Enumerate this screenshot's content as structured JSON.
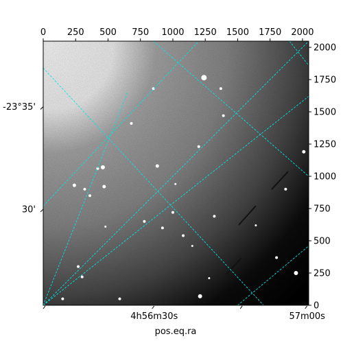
{
  "chart_data": {
    "type": "image",
    "xlabel": "pos.eq.ra",
    "ylabel": "",
    "pixel_axes": {
      "x": {
        "lim": [
          0,
          2048
        ],
        "ticks": [
          0,
          250,
          500,
          750,
          1000,
          1250,
          1500,
          1750,
          2000
        ]
      },
      "y": {
        "lim": [
          0,
          2048
        ],
        "ticks": [
          0,
          250,
          500,
          750,
          1000,
          1250,
          1500,
          1750,
          2000
        ]
      }
    },
    "wcs_ticks": {
      "ra": [
        {
          "label": "4h56m30s",
          "x": 840,
          "y": 0
        },
        {
          "label": "57m00s",
          "x": 2020,
          "y": 0
        }
      ],
      "dec": [
        {
          "label": "-23°35'",
          "x": 0,
          "y": 1540
        },
        {
          "label": "30'",
          "x": 0,
          "y": 745
        }
      ]
    },
    "grid": {
      "color": "#00e5e5",
      "style": "dashed",
      "lines": [
        [
          [
            0,
            0
          ],
          [
            650,
            1650
          ]
        ],
        [
          [
            0,
            770
          ],
          [
            1200,
            2048
          ]
        ],
        [
          [
            0,
            0
          ],
          [
            2048,
            2048
          ]
        ],
        [
          [
            0,
            1840
          ],
          [
            1700,
            0
          ]
        ],
        [
          [
            850,
            2048
          ],
          [
            2048,
            1000
          ]
        ],
        [
          [
            1900,
            2048
          ],
          [
            2048,
            1860
          ]
        ],
        [
          [
            1500,
            0
          ],
          [
            2048,
            460
          ]
        ],
        [
          [
            0,
            0
          ],
          [
            2048,
            1620
          ]
        ]
      ]
    },
    "stars": [
      [
        1240,
        1765,
        4
      ],
      [
        850,
        1680,
        2
      ],
      [
        1370,
        1680,
        2
      ],
      [
        1390,
        1470,
        2
      ],
      [
        680,
        1410,
        2
      ],
      [
        1200,
        1230,
        2
      ],
      [
        880,
        1080,
        2.5
      ],
      [
        420,
        1060,
        2
      ],
      [
        460,
        1070,
        3
      ],
      [
        240,
        930,
        2.5
      ],
      [
        320,
        900,
        2
      ],
      [
        470,
        920,
        2.5
      ],
      [
        360,
        850,
        2
      ],
      [
        1000,
        720,
        2
      ],
      [
        780,
        650,
        2
      ],
      [
        920,
        600,
        2
      ],
      [
        270,
        300,
        2
      ],
      [
        1080,
        540,
        2
      ],
      [
        1320,
        690,
        2
      ],
      [
        1870,
        900,
        2
      ],
      [
        2010,
        1190,
        2.5
      ],
      [
        1210,
        70,
        3
      ],
      [
        300,
        220,
        2
      ],
      [
        1800,
        370,
        2
      ],
      [
        1950,
        250,
        3
      ],
      [
        590,
        50,
        2
      ],
      [
        150,
        50,
        2
      ],
      [
        1150,
        460,
        1.5
      ],
      [
        480,
        610,
        1.5
      ],
      [
        1280,
        210,
        1.5
      ],
      [
        1020,
        940,
        1.5
      ],
      [
        1640,
        620,
        1.5
      ]
    ]
  }
}
